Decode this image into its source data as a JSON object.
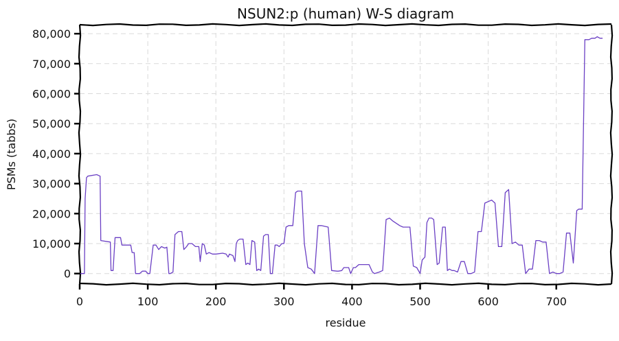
{
  "chart_data": {
    "type": "line",
    "title": "NSUN2:p (human) W-S diagram",
    "xlabel": "residue",
    "ylabel": "PSMs (tabbs)",
    "xlim": [
      0,
      781
    ],
    "ylim": [
      -3500,
      83000
    ],
    "grid": true,
    "x_ticks": [
      0,
      100,
      200,
      300,
      400,
      500,
      600,
      700
    ],
    "x_tick_labels": [
      "0",
      "100",
      "200",
      "300",
      "400",
      "500",
      "600",
      "700"
    ],
    "y_ticks": [
      0,
      10000,
      20000,
      30000,
      40000,
      50000,
      60000,
      70000,
      80000
    ],
    "y_tick_labels": [
      "0",
      "10,000",
      "20,000",
      "30,000",
      "40,000",
      "50,000",
      "60,000",
      "70,000",
      "80,000"
    ],
    "series": [
      {
        "color": "#6a3fc4",
        "x": [
          1,
          7,
          8,
          10,
          12,
          25,
          30,
          31,
          45,
          46,
          49,
          52,
          60,
          62,
          75,
          77,
          80,
          82,
          88,
          92,
          97,
          100,
          103,
          108,
          112,
          116,
          120,
          125,
          128,
          131,
          133,
          137,
          140,
          145,
          150,
          153,
          157,
          160,
          165,
          170,
          175,
          177,
          180,
          183,
          186,
          190,
          195,
          200,
          210,
          215,
          218,
          220,
          225,
          228,
          230,
          232,
          235,
          240,
          244,
          247,
          250,
          253,
          257,
          260,
          263,
          266,
          270,
          273,
          277,
          280,
          283,
          287,
          290,
          293,
          297,
          300,
          303,
          307,
          310,
          313,
          317,
          320,
          323,
          326,
          330,
          335,
          340,
          345,
          350,
          355,
          365,
          370,
          378,
          380,
          385,
          388,
          395,
          398,
          402,
          405,
          410,
          415,
          420,
          425,
          430,
          433,
          440,
          445,
          450,
          455,
          460,
          470,
          475,
          480,
          485,
          490,
          495,
          500,
          503,
          507,
          510,
          513,
          517,
          520,
          525,
          528,
          533,
          537,
          540,
          543,
          547,
          550,
          555,
          560,
          565,
          570,
          575,
          580,
          585,
          590,
          595,
          600,
          605,
          610,
          615,
          620,
          625,
          630,
          635,
          640,
          645,
          650,
          655,
          660,
          665,
          670,
          675,
          680,
          685,
          690,
          695,
          700,
          705,
          710,
          715,
          720,
          725,
          730,
          733,
          738,
          742,
          745,
          748,
          752,
          757,
          760,
          764,
          768
        ],
        "values": [
          0,
          0,
          25000,
          32000,
          32500,
          33000,
          32500,
          11000,
          10500,
          1000,
          1000,
          12000,
          12000,
          9500,
          9500,
          7000,
          7000,
          0,
          0,
          800,
          800,
          0,
          0,
          9500,
          9500,
          8000,
          9000,
          8500,
          8800,
          0,
          0,
          500,
          13000,
          14000,
          14000,
          8000,
          9000,
          10000,
          10000,
          9000,
          9000,
          4000,
          10000,
          9500,
          6500,
          7000,
          6500,
          6500,
          6800,
          6500,
          5500,
          6500,
          6000,
          4000,
          10000,
          11000,
          11500,
          11500,
          3000,
          3500,
          3000,
          11000,
          10500,
          1000,
          1500,
          1000,
          12500,
          13000,
          13000,
          0,
          0,
          9500,
          9500,
          9000,
          10000,
          10000,
          15500,
          16000,
          16000,
          16000,
          27000,
          27500,
          27500,
          27500,
          10000,
          2000,
          1500,
          0,
          16000,
          16000,
          15500,
          1000,
          800,
          800,
          1000,
          2000,
          2000,
          0,
          2000,
          2000,
          3000,
          3000,
          3000,
          3000,
          500,
          0,
          500,
          1000,
          18000,
          18500,
          17500,
          16000,
          15500,
          15500,
          15500,
          2500,
          2000,
          0,
          4500,
          5500,
          17000,
          18500,
          18500,
          18000,
          3000,
          3500,
          15500,
          15500,
          1000,
          1500,
          1000,
          1000,
          500,
          4000,
          4000,
          0,
          0,
          500,
          14000,
          14000,
          23500,
          24000,
          24500,
          23500,
          9000,
          9000,
          27000,
          28000,
          10000,
          10500,
          9500,
          9500,
          0,
          1500,
          1500,
          11000,
          11000,
          10500,
          10500,
          0,
          500,
          0,
          0,
          500,
          13500,
          13500,
          3500,
          21000,
          21500,
          21500,
          78000,
          78000,
          78000,
          78500,
          78500,
          79000,
          78500,
          78500
        ]
      }
    ]
  }
}
